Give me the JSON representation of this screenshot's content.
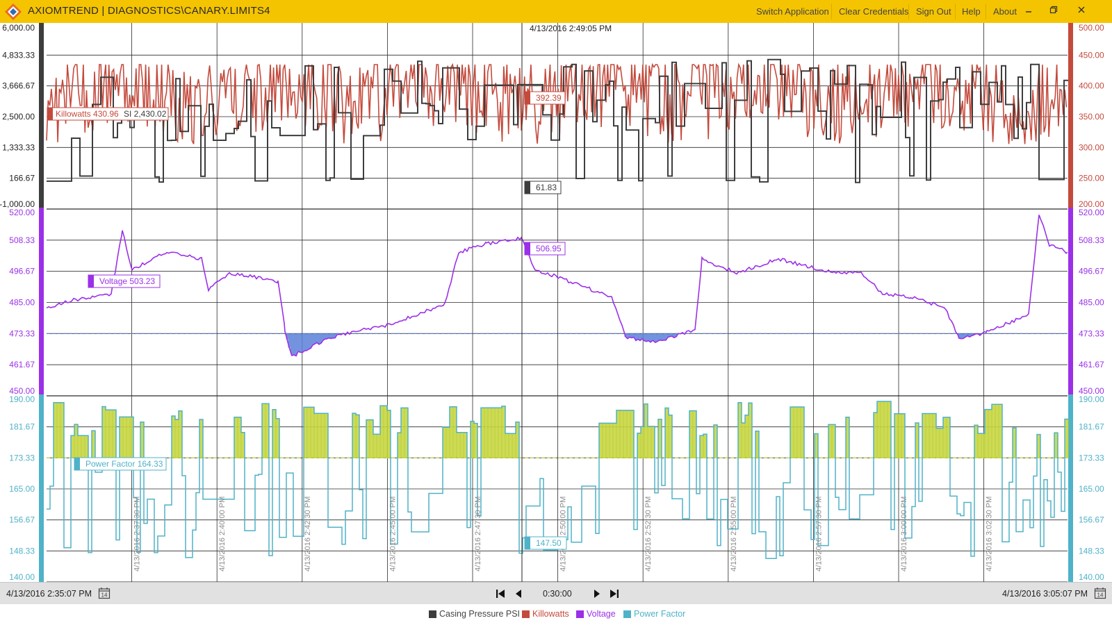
{
  "app": {
    "title": "AXIOMTREND | DIAGNOSTICS\\CANARY.LIMITS4",
    "menu": [
      "Switch Application",
      "Clear Credentials",
      "Sign Out",
      "Help",
      "About"
    ],
    "window_controls": [
      "minimize-icon",
      "restore-icon",
      "close-icon"
    ]
  },
  "colors": {
    "titlebar": "#f5c400",
    "casing": "#3d3d3d",
    "killowatts": "#c44a3c",
    "voltage": "#9b30e8",
    "voltage_fill": "#5a80d8",
    "power_factor": "#4fb2c8",
    "pf_fill": "#c8d840"
  },
  "cursor": {
    "timestamp": "4/13/2016 2:49:05 PM"
  },
  "panels": [
    {
      "name": "casing-killowatts",
      "left_axis": [
        "6,000.00",
        "4,833.33",
        "3,666.67",
        "2,500.00",
        "1,333.33",
        "166.67",
        "-1,000.00"
      ],
      "right_axis": [
        "500.00",
        "450.00",
        "400.00",
        "350.00",
        "300.00",
        "250.00",
        "200.00"
      ],
      "left_tag": "Killowatts 430.96",
      "left_tag2": "SI 2,430.02",
      "cursor_values": [
        "392.39",
        "61.83"
      ]
    },
    {
      "name": "voltage",
      "left_axis": [
        "520.00",
        "508.33",
        "496.67",
        "485.00",
        "473.33",
        "461.67",
        "450.00"
      ],
      "right_axis": [
        "520.00",
        "508.33",
        "496.67",
        "485.00",
        "473.33",
        "461.67",
        "450.00"
      ],
      "left_tag": "Voltage 503.23",
      "cursor_values": [
        "506.95"
      ]
    },
    {
      "name": "power-factor",
      "left_axis": [
        "190.00",
        "181.67",
        "173.33",
        "165.00",
        "156.67",
        "148.33",
        "140.00"
      ],
      "right_axis": [
        "190.00",
        "181.67",
        "173.33",
        "165.00",
        "156.67",
        "148.33",
        "140.00"
      ],
      "left_tag": "Power Factor 164.33",
      "cursor_values": [
        "147.50"
      ]
    }
  ],
  "time_labels": [
    "4/13/2016 2:37:30 PM",
    "4/13/2016 2:40:00 PM",
    "4/13/2016 2:42:30 PM",
    "4/13/2016 2:45:00 PM",
    "4/13/2016 2:47:30 PM",
    "4/13/2016 2:50:00 PM",
    "4/13/2016 2:52:30 PM",
    "4/13/2016 2:55:00 PM",
    "4/13/2016 2:57:30 PM",
    "4/13/2016 3:00:00 PM",
    "4/13/2016 3:02:30 PM"
  ],
  "toolbar": {
    "start_time": "4/13/2016 2:35:07 PM",
    "duration": "0:30:00",
    "end_time": "4/13/2016 3:05:07 PM",
    "calendar_day": "14"
  },
  "legend": [
    {
      "label": "Casing Pressure PSI",
      "color": "#3d3d3d"
    },
    {
      "label": "Killowatts",
      "color": "#c44a3c"
    },
    {
      "label": "Voltage",
      "color": "#9b30e8"
    },
    {
      "label": "Power Factor",
      "color": "#4fb2c8"
    }
  ]
}
